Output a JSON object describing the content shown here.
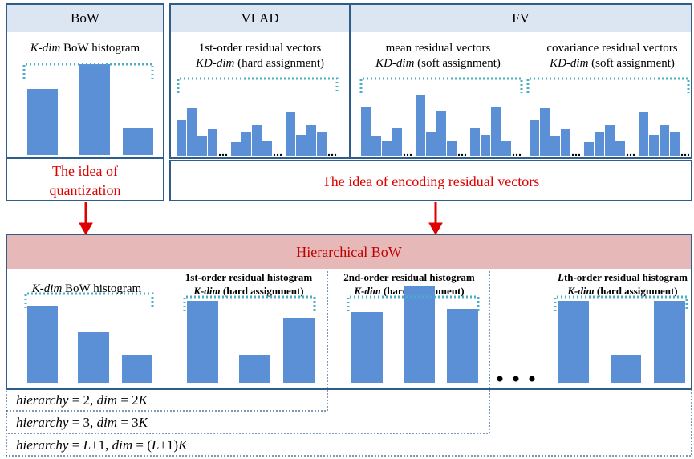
{
  "bow": {
    "header": "BoW",
    "hist_dim": "K-dim",
    "hist_rest": " BoW histogram",
    "idea": [
      "The idea of",
      "quantization"
    ]
  },
  "vlad": {
    "header": "VLAD",
    "line1": "1st-order residual vectors",
    "dim": "KD-dim",
    "assign": " (hard assignment)"
  },
  "fv": {
    "header": "FV",
    "mean": "mean residual vectors",
    "cov": "covariance residual vectors",
    "dim": "KD-dim",
    "assign": " (soft assignment)"
  },
  "residual_idea": "The idea of encoding residual vectors",
  "hbow": {
    "header": "Hierarchical BoW",
    "h1": {
      "dim": "K-dim",
      "rest": " BoW histogram"
    },
    "h2": {
      "title": "1st-order residual histogram",
      "dim": "K-dim",
      "assign": " (hard assignment)"
    },
    "h3": {
      "title": "2nd-order residual histogram",
      "dim": "K-dim",
      "assign": " (hard assignment)"
    },
    "h4": {
      "title_l": "L",
      "title_rest": "th-order residual histogram",
      "dim": "K-dim",
      "assign": " (hard assignment)"
    }
  },
  "hierarchies": [
    [
      "hierarchy",
      " = 2, ",
      "dim",
      " = 2",
      "K"
    ],
    [
      "hierarchy",
      " = 3, ",
      "dim",
      " = 3",
      "K"
    ],
    [
      "hierarchy",
      " = ",
      "L",
      "+1, ",
      "dim",
      " = (",
      "L",
      "+1)",
      "K"
    ]
  ]
}
